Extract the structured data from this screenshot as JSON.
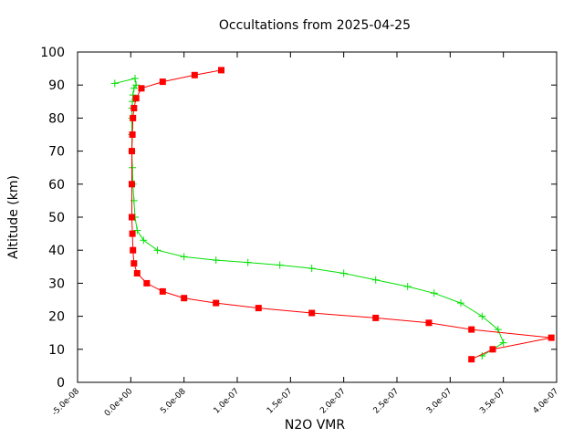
{
  "chart_data": {
    "type": "scatter",
    "title": "Occultations from 2025-04-25",
    "xlabel": "N2O VMR",
    "ylabel": "Altitude (km)",
    "xlim": [
      -5e-08,
      4e-07
    ],
    "ylim": [
      0,
      100
    ],
    "xticks": [
      "-5.0e-08",
      "0.0e+00",
      "5.0e-08",
      "1.0e-07",
      "1.5e-07",
      "2.0e-07",
      "2.5e-07",
      "3.0e-07",
      "3.5e-07",
      "4.0e-07"
    ],
    "xtick_values": [
      -5e-08,
      0,
      5e-08,
      1e-07,
      1.5e-07,
      2e-07,
      2.5e-07,
      3e-07,
      3.5e-07,
      4e-07
    ],
    "yticks": [
      "0",
      "10",
      "20",
      "30",
      "40",
      "50",
      "60",
      "70",
      "80",
      "90",
      "100"
    ],
    "ytick_values": [
      0,
      10,
      20,
      30,
      40,
      50,
      60,
      70,
      80,
      90,
      100
    ],
    "grid": false,
    "legend": false,
    "series": [
      {
        "marker": "plus",
        "color": "#00e000",
        "x": [
          3.3e-07,
          3.5e-07,
          3.45e-07,
          3.3e-07,
          3.1e-07,
          2.85e-07,
          2.6e-07,
          2.3e-07,
          2e-07,
          1.7e-07,
          1.4e-07,
          1.1e-07,
          8e-08,
          5e-08,
          2.5e-08,
          1.2e-08,
          6e-09,
          4e-09,
          3e-09,
          2e-09,
          1.5e-09,
          1e-09,
          1e-09,
          1e-09,
          1.2e-09,
          1.5e-09,
          2e-09,
          3e-09,
          5e-09,
          4e-09,
          -1.5e-08
        ],
        "y": [
          8,
          12,
          16,
          20,
          24,
          27,
          29,
          31,
          33,
          34.5,
          35.5,
          36.3,
          37,
          38,
          40,
          43,
          46,
          50,
          55,
          60,
          65,
          70,
          75,
          80,
          83,
          85,
          87,
          89,
          90,
          92,
          90.5
        ]
      },
      {
        "marker": "square",
        "color": "#ff0000",
        "x": [
          3.2e-07,
          3.4e-07,
          3.95e-07,
          3.2e-07,
          2.8e-07,
          2.3e-07,
          1.7e-07,
          1.2e-07,
          8e-08,
          5e-08,
          3e-08,
          1.5e-08,
          6e-09,
          3e-09,
          2e-09,
          1.5e-09,
          1e-09,
          1e-09,
          1e-09,
          1.5e-09,
          2e-09,
          3e-09,
          5e-09,
          1e-08,
          3e-08,
          6e-08,
          8.5e-08
        ],
        "y": [
          7,
          10,
          13.5,
          16,
          18,
          19.5,
          21,
          22.5,
          24,
          25.5,
          27.5,
          30,
          33,
          36,
          40,
          45,
          50,
          60,
          70,
          75,
          80,
          83,
          86,
          89,
          91,
          93,
          94.5
        ]
      }
    ]
  }
}
